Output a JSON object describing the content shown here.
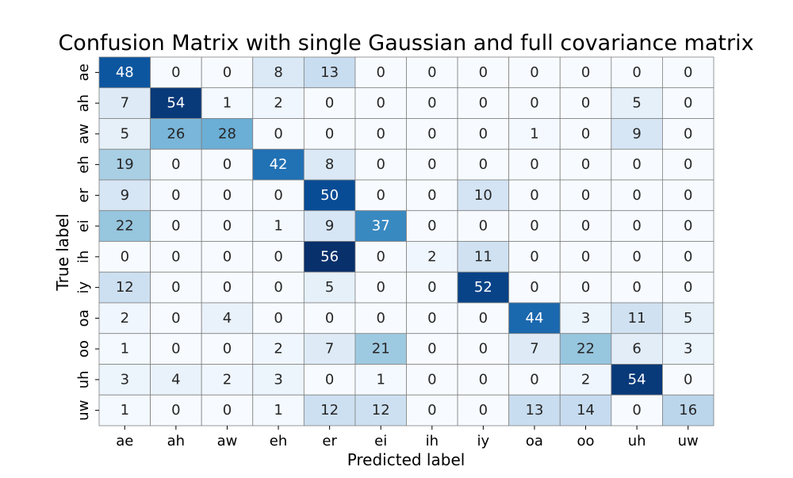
{
  "chart_data": {
    "type": "heatmap",
    "title": "Confusion Matrix with single Gaussian and full covariance matrix",
    "xlabel": "Predicted label",
    "ylabel": "True label",
    "x_categories": [
      "ae",
      "ah",
      "aw",
      "eh",
      "er",
      "ei",
      "ih",
      "iy",
      "oa",
      "oo",
      "uh",
      "uw"
    ],
    "y_categories": [
      "ae",
      "ah",
      "aw",
      "eh",
      "er",
      "ei",
      "ih",
      "iy",
      "oa",
      "oo",
      "uh",
      "uw"
    ],
    "values": [
      [
        48,
        0,
        0,
        8,
        13,
        0,
        0,
        0,
        0,
        0,
        0,
        0
      ],
      [
        7,
        54,
        1,
        2,
        0,
        0,
        0,
        0,
        0,
        0,
        5,
        0
      ],
      [
        5,
        26,
        28,
        0,
        0,
        0,
        0,
        0,
        1,
        0,
        9,
        0
      ],
      [
        19,
        0,
        0,
        42,
        8,
        0,
        0,
        0,
        0,
        0,
        0,
        0
      ],
      [
        9,
        0,
        0,
        0,
        50,
        0,
        0,
        10,
        0,
        0,
        0,
        0
      ],
      [
        22,
        0,
        0,
        1,
        9,
        37,
        0,
        0,
        0,
        0,
        0,
        0
      ],
      [
        0,
        0,
        0,
        0,
        56,
        0,
        2,
        11,
        0,
        0,
        0,
        0
      ],
      [
        12,
        0,
        0,
        0,
        5,
        0,
        0,
        52,
        0,
        0,
        0,
        0
      ],
      [
        2,
        0,
        4,
        0,
        0,
        0,
        0,
        0,
        44,
        3,
        11,
        5
      ],
      [
        1,
        0,
        0,
        2,
        7,
        21,
        0,
        0,
        7,
        22,
        6,
        3
      ],
      [
        3,
        4,
        2,
        3,
        0,
        1,
        0,
        0,
        0,
        2,
        54,
        0
      ],
      [
        1,
        0,
        0,
        1,
        12,
        12,
        0,
        0,
        13,
        14,
        0,
        16
      ]
    ],
    "colormap": "Blues",
    "value_range": [
      0,
      56
    ],
    "cell_edge_color": "#808080"
  }
}
